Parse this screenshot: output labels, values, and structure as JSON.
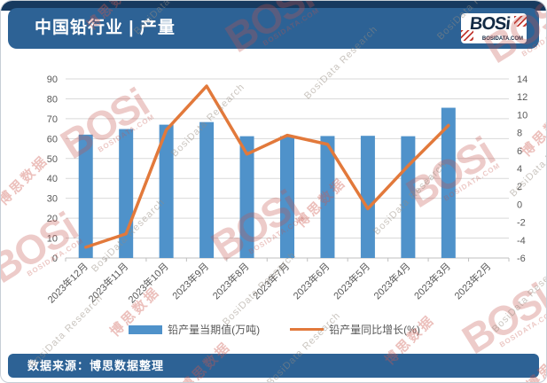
{
  "header": {
    "title": "中国铅行业 | 产量",
    "logo": {
      "wordmark": "BOSi",
      "domain": "BOSIDATA.COM"
    }
  },
  "footer": {
    "source": "数据来源：博思数据整理"
  },
  "watermarks": {
    "logo": "BOSi",
    "domain": "BOSIDATA.COM",
    "research": "BosiData Research",
    "cn": "博思数据"
  },
  "colors": {
    "accent": "#2d6295",
    "band": "#173a5f",
    "bar": "#4f92ca",
    "line": "#e2793b",
    "navy": "#122a44",
    "red": "#c23b33",
    "border": "#c7ced6",
    "grid": "#d9d9d9",
    "axis_text": "#595959"
  },
  "chart_data": {
    "type": "bar",
    "subtype": "combo-bar-line",
    "categories": [
      "2023年12月",
      "2023年11月",
      "2023年10月",
      "2023年9月",
      "2023年8月",
      "2023年7月",
      "2023年6月",
      "2023年5月",
      "2023年4月",
      "2023年3月",
      "2023年2月"
    ],
    "series": [
      {
        "name": "铅产量当期值(万吨)",
        "type": "bar",
        "axis": "left",
        "color": "#4f92ca",
        "values": [
          62,
          64.8,
          67,
          68.3,
          61.2,
          61.2,
          61.3,
          61.4,
          61.2,
          75.5,
          null
        ]
      },
      {
        "name": "铅产量同比增长(%)",
        "type": "line",
        "axis": "right",
        "color": "#e2793b",
        "values": [
          -4.8,
          -3.3,
          8.3,
          13.2,
          5.6,
          7.7,
          6.7,
          -0.5,
          4.3,
          8.8,
          null
        ]
      }
    ],
    "title": "中国铅行业 | 产量",
    "xlabel": "",
    "ylabel_left": "铅产量当期值(万吨)",
    "ylabel_right": "铅产量同比增长(%)",
    "left_axis": {
      "min": 0,
      "max": 90,
      "step": 10
    },
    "right_axis": {
      "min": -6,
      "max": 14,
      "step": 2
    },
    "grid": true,
    "legend_position": "bottom"
  }
}
